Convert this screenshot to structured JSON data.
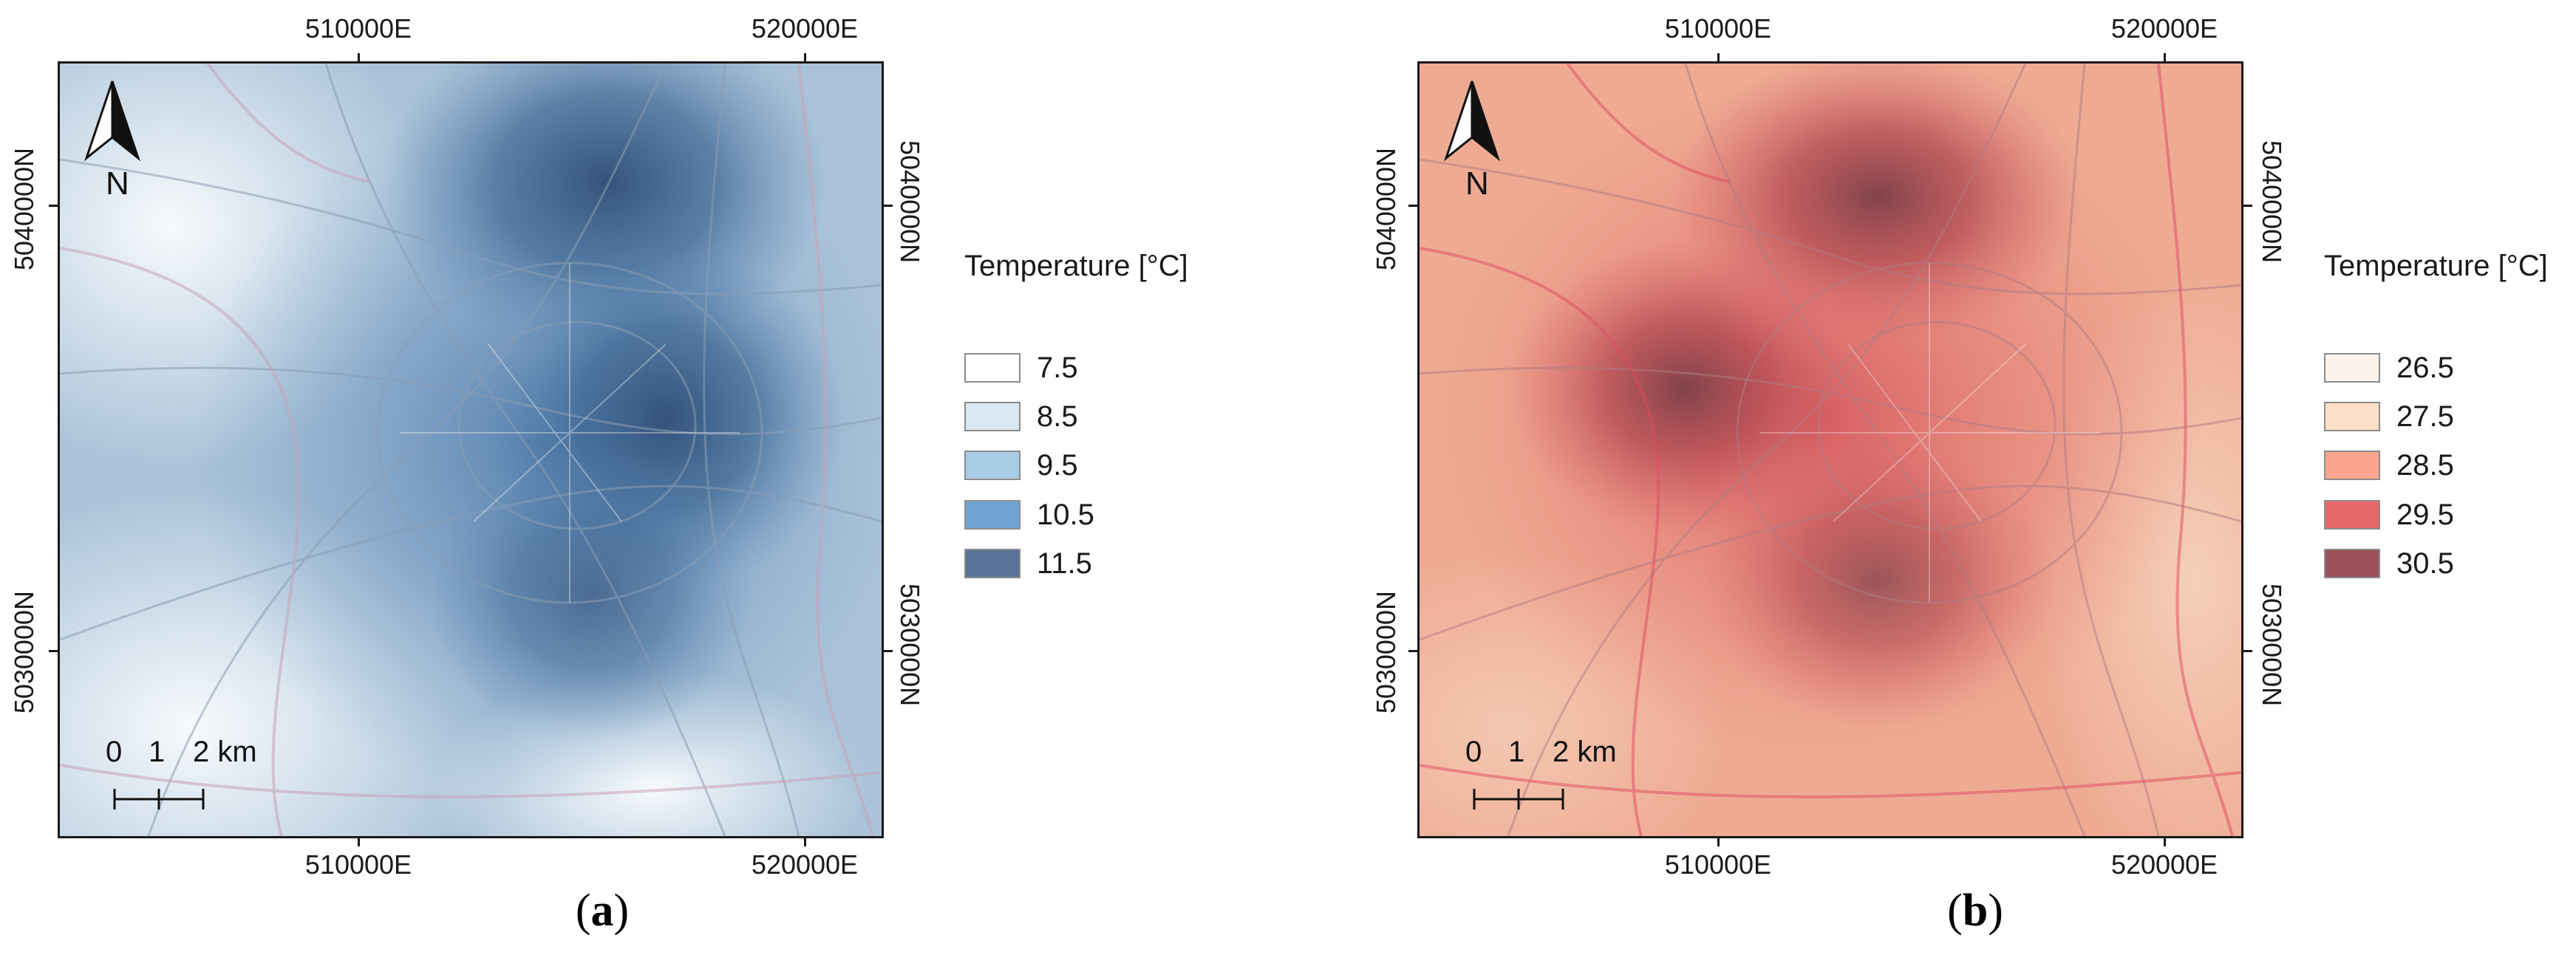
{
  "panels": [
    {
      "id": "a",
      "caption": "a",
      "legend_title": "Temperature [°C]",
      "legend": [
        {
          "label": "7.5",
          "color": "#ffffff"
        },
        {
          "label": "8.5",
          "color": "#dbe8f4"
        },
        {
          "label": "9.5",
          "color": "#a8cce5"
        },
        {
          "label": "10.5",
          "color": "#70a4d2"
        },
        {
          "label": "11.5",
          "color": "#5a7299"
        }
      ],
      "base_color": "#e8eef2",
      "heat_color": "#33557f"
    },
    {
      "id": "b",
      "caption": "b",
      "legend_title": "Temperature [°C]",
      "legend": [
        {
          "label": "26.5",
          "color": "#fdf2ec"
        },
        {
          "label": "27.5",
          "color": "#fde0c8"
        },
        {
          "label": "28.5",
          "color": "#f9a58f"
        },
        {
          "label": "29.5",
          "color": "#e8676b"
        },
        {
          "label": "30.5",
          "color": "#9c5058"
        }
      ],
      "base_color": "#f2c3aa",
      "heat_color": "#c64a4e"
    }
  ],
  "axes": {
    "x_ticks": [
      "510000E",
      "520000E"
    ],
    "y_ticks": [
      "5040000N",
      "5030000N"
    ]
  },
  "north_label": "N",
  "scale_bar": {
    "labels": [
      "0",
      "1",
      "2 km"
    ]
  }
}
